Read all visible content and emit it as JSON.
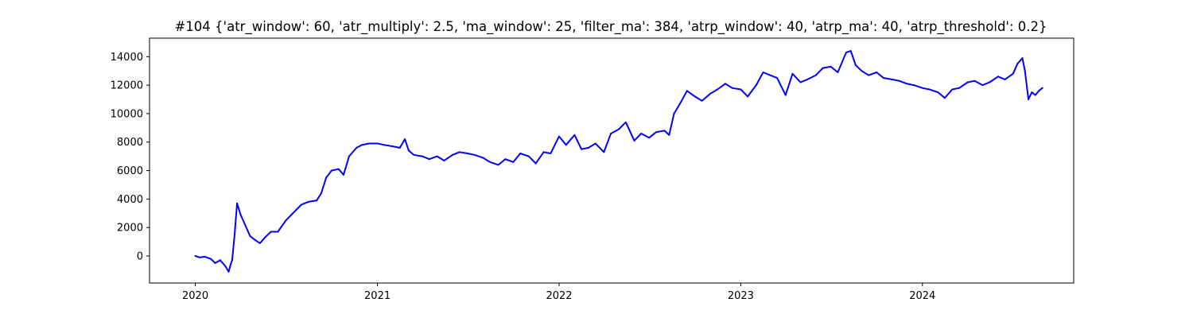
{
  "chart_data": {
    "type": "line",
    "title": "#104 {'atr_window': 60, 'atr_multiply': 2.5, 'ma_window': 25, 'filter_ma': 384, 'atrp_window': 40, 'atrp_ma': 40, 'atrp_threshold': 0.2}",
    "xlabel": "",
    "ylabel": "",
    "x_ticks": [
      "2020",
      "2021",
      "2022",
      "2023",
      "2024"
    ],
    "y_ticks": [
      0,
      2000,
      4000,
      6000,
      8000,
      10000,
      12000,
      14000
    ],
    "xlim": [
      "2019-10-01",
      "2024-10-31"
    ],
    "ylim": [
      -1900,
      15300
    ],
    "grid": false,
    "colors": {
      "line": "#0000ff",
      "axes": "#000000",
      "background": "#ffffff"
    },
    "series": [
      {
        "x": [
          "2020-01-01",
          "2020-01-10",
          "2020-01-20",
          "2020-02-01",
          "2020-02-10",
          "2020-02-20",
          "2020-03-01",
          "2020-03-08",
          "2020-03-12",
          "2020-03-15",
          "2020-03-20",
          "2020-03-25",
          "2020-04-01",
          "2020-04-10",
          "2020-04-20",
          "2020-05-01",
          "2020-05-10",
          "2020-05-20",
          "2020-06-01",
          "2020-06-15",
          "2020-07-01",
          "2020-07-15",
          "2020-08-01",
          "2020-08-15",
          "2020-09-01",
          "2020-09-10",
          "2020-09-20",
          "2020-10-01",
          "2020-10-15",
          "2020-10-25",
          "2020-11-05",
          "2020-11-20",
          "2020-12-01",
          "2020-12-15",
          "2021-01-01",
          "2021-01-15",
          "2021-02-01",
          "2021-02-15",
          "2021-02-25",
          "2021-03-05",
          "2021-03-15",
          "2021-04-01",
          "2021-04-15",
          "2021-05-01",
          "2021-05-15",
          "2021-06-01",
          "2021-06-15",
          "2021-07-01",
          "2021-07-15",
          "2021-08-01",
          "2021-08-15",
          "2021-09-01",
          "2021-09-15",
          "2021-10-01",
          "2021-10-15",
          "2021-11-01",
          "2021-11-15",
          "2021-12-01",
          "2021-12-15",
          "2022-01-01",
          "2022-01-15",
          "2022-02-01",
          "2022-02-15",
          "2022-03-01",
          "2022-03-15",
          "2022-04-01",
          "2022-04-15",
          "2022-05-01",
          "2022-05-15",
          "2022-06-01",
          "2022-06-15",
          "2022-07-01",
          "2022-07-15",
          "2022-08-01",
          "2022-08-10",
          "2022-08-20",
          "2022-09-01",
          "2022-09-15",
          "2022-10-01",
          "2022-10-15",
          "2022-11-01",
          "2022-11-15",
          "2022-12-01",
          "2022-12-15",
          "2023-01-01",
          "2023-01-15",
          "2023-02-01",
          "2023-02-15",
          "2023-03-01",
          "2023-03-15",
          "2023-04-01",
          "2023-04-15",
          "2023-05-01",
          "2023-05-15",
          "2023-06-01",
          "2023-06-15",
          "2023-07-01",
          "2023-07-15",
          "2023-08-01",
          "2023-08-10",
          "2023-08-20",
          "2023-09-01",
          "2023-09-15",
          "2023-10-01",
          "2023-10-15",
          "2023-11-01",
          "2023-11-15",
          "2023-12-01",
          "2023-12-15",
          "2024-01-01",
          "2024-01-15",
          "2024-02-01",
          "2024-02-15",
          "2024-03-01",
          "2024-03-15",
          "2024-04-01",
          "2024-04-15",
          "2024-05-01",
          "2024-05-15",
          "2024-06-01",
          "2024-06-15",
          "2024-07-01",
          "2024-07-10",
          "2024-07-20",
          "2024-07-25",
          "2024-08-01",
          "2024-08-08",
          "2024-08-15",
          "2024-08-22",
          "2024-08-29"
        ],
        "values": [
          0,
          -100,
          -50,
          -200,
          -500,
          -300,
          -700,
          -1100,
          -600,
          -300,
          1500,
          3700,
          2900,
          2200,
          1400,
          1100,
          900,
          1300,
          1700,
          1700,
          2500,
          3000,
          3600,
          3800,
          3900,
          4400,
          5500,
          6000,
          6100,
          5700,
          7000,
          7600,
          7800,
          7900,
          7900,
          7800,
          7700,
          7600,
          8200,
          7400,
          7100,
          7000,
          6800,
          7000,
          6700,
          7100,
          7300,
          7200,
          7100,
          6900,
          6600,
          6400,
          6800,
          6600,
          7200,
          7000,
          6500,
          7300,
          7200,
          8400,
          7800,
          8500,
          7500,
          7600,
          7900,
          7300,
          8600,
          8900,
          9400,
          8100,
          8600,
          8300,
          8700,
          8800,
          8500,
          10000,
          10700,
          11600,
          11200,
          10900,
          11400,
          11700,
          12100,
          11800,
          11700,
          11200,
          12000,
          12900,
          12700,
          12500,
          11300,
          12800,
          12200,
          12400,
          12700,
          13200,
          13300,
          12900,
          14300,
          14400,
          13400,
          13000,
          12700,
          12900,
          12500,
          12400,
          12300,
          12100,
          12000,
          11800,
          11700,
          11500,
          11100,
          11700,
          11800,
          12200,
          12300,
          12000,
          12200,
          12600,
          12400,
          12800,
          13500,
          13900,
          13000,
          11000,
          11500,
          11300,
          11600,
          11800
        ]
      }
    ]
  }
}
